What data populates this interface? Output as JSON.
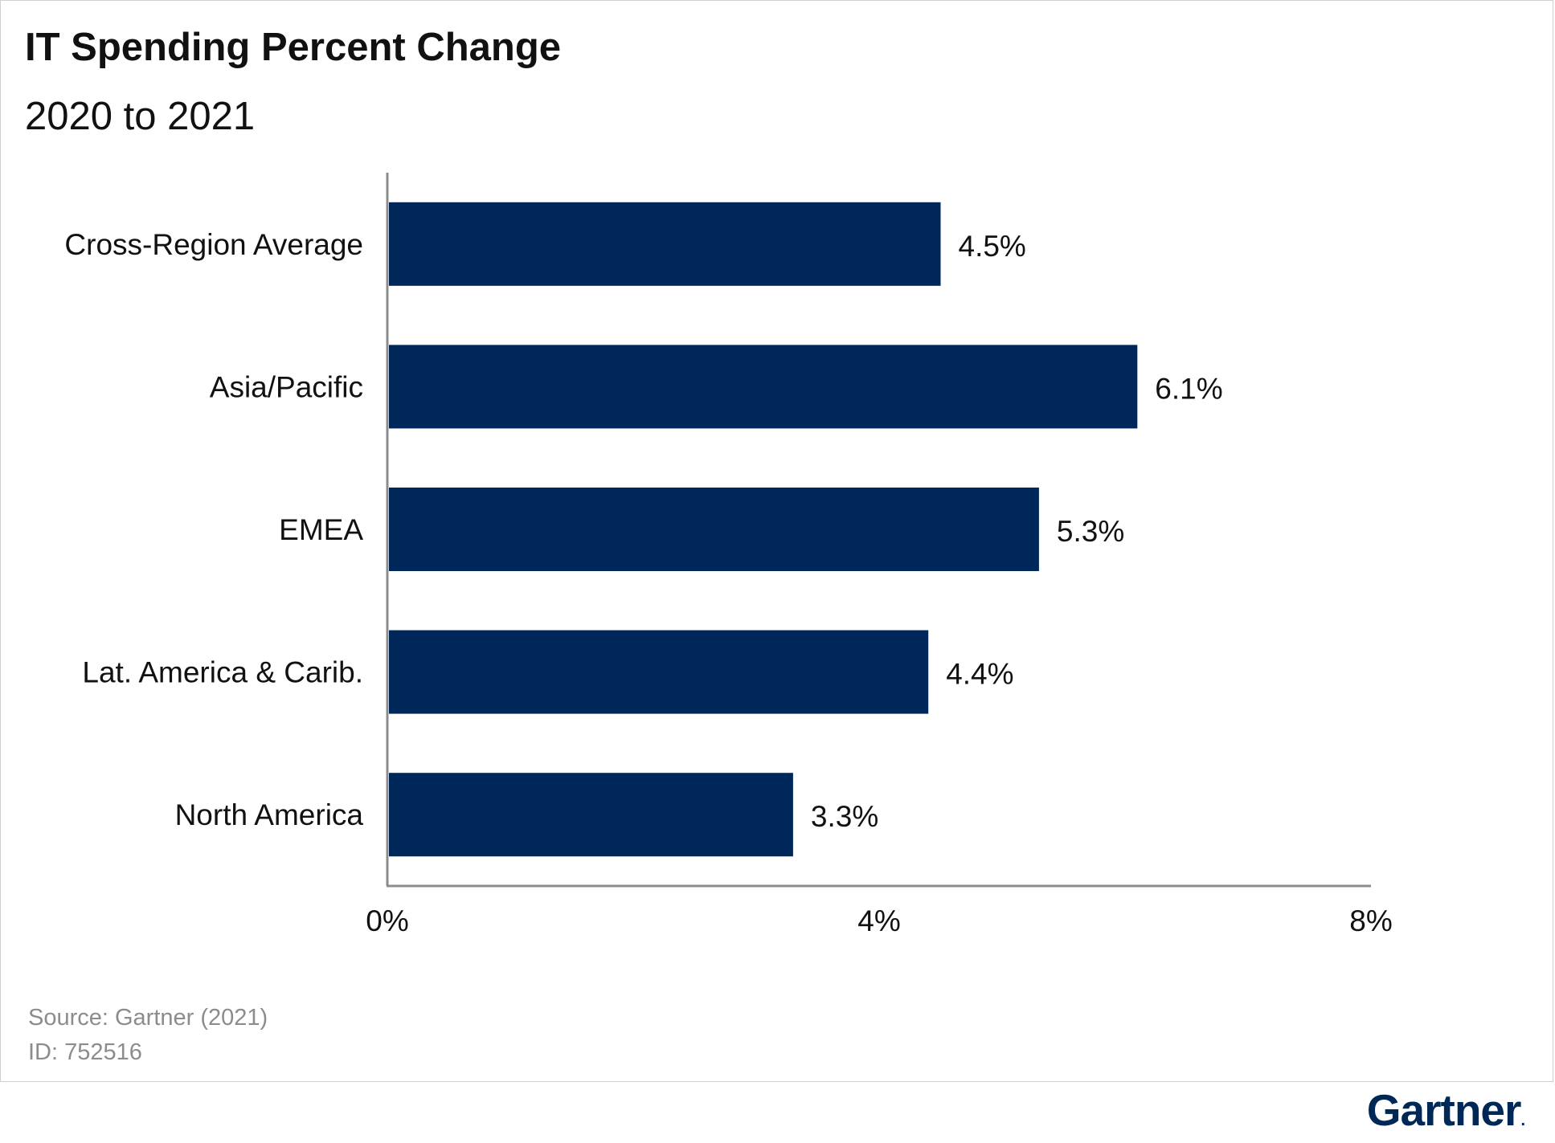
{
  "chart_data": {
    "type": "bar",
    "orientation": "horizontal",
    "title": "IT Spending Percent Change",
    "subtitle": "2020 to 2021",
    "categories": [
      "Cross-Region Average",
      "Asia/Pacific",
      "EMEA",
      "Lat. America & Carib.",
      "North America"
    ],
    "values": [
      4.5,
      6.1,
      5.3,
      4.4,
      3.3
    ],
    "data_labels": [
      "4.5%",
      "6.1%",
      "5.3%",
      "4.4%",
      "3.3%"
    ],
    "xlim": [
      0,
      8
    ],
    "xticks": [
      0,
      4,
      8
    ],
    "xtick_labels": [
      "0%",
      "4%",
      "8%"
    ],
    "xlabel": "",
    "ylabel": "",
    "grid": false,
    "legend": "none",
    "bar_color": "#00275a",
    "axis_color": "#8c8c8c"
  },
  "footer": {
    "source": "Source: Gartner (2021)",
    "id": "ID: 752516"
  },
  "brand": {
    "name": "Gartner",
    "color": "#002856"
  }
}
